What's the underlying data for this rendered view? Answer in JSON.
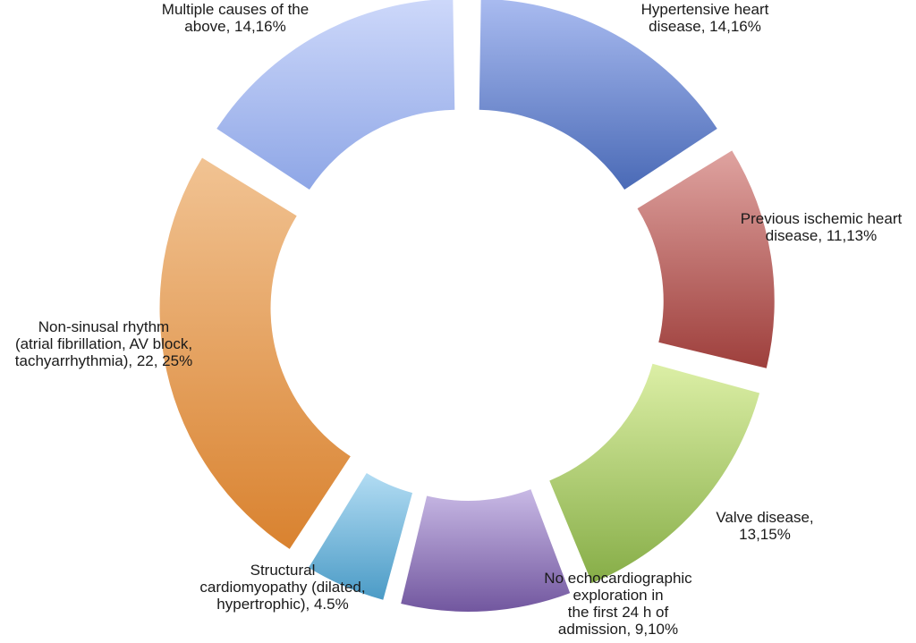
{
  "chart_data": {
    "type": "pie",
    "variant": "exploded-donut",
    "title": "",
    "slices": [
      {
        "label_lines": [
          "Hypertensive heart",
          "disease, 14,16%"
        ],
        "count": 14,
        "percent": 16,
        "color_light": "#a9bbf0",
        "color_dark": "#4a6ab6"
      },
      {
        "label_lines": [
          "Previous ischemic heart",
          "disease, 11,13%"
        ],
        "count": 11,
        "percent": 13,
        "color_light": "#dfa3a0",
        "color_dark": "#9e3f3c"
      },
      {
        "label_lines": [
          "Valve disease,",
          "13,15%"
        ],
        "count": 13,
        "percent": 15,
        "color_light": "#dcefa6",
        "color_dark": "#86ad47"
      },
      {
        "label_lines": [
          "No echocardiographic",
          "exploration in",
          "the first 24 h of",
          "admission, 9,10%"
        ],
        "count": 9,
        "percent": 10,
        "color_light": "#c8b9e5",
        "color_dark": "#72579f"
      },
      {
        "label_lines": [
          "Structural",
          "cardiomyopathy (dilated,",
          "hypertrophic), 4.5%"
        ],
        "count": 4,
        "percent": 5,
        "color_light": "#b2dcf3",
        "color_dark": "#4b9bc6"
      },
      {
        "label_lines": [
          "Non-sinusal rhythm",
          "(atrial fibrillation, AV block,",
          "tachyarrhythmia), 22, 25%"
        ],
        "count": 22,
        "percent": 25,
        "color_light": "#f1c393",
        "color_dark": "#d9822f"
      },
      {
        "label_lines": [
          "Multiple causes of the",
          "above, 14,16%"
        ],
        "count": 14,
        "percent": 16,
        "color_light": "#cdd8fa",
        "color_dark": "#8ea6e6"
      }
    ]
  }
}
